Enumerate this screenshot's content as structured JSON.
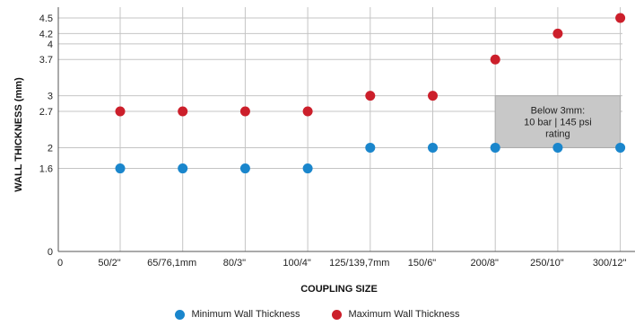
{
  "chart_data": {
    "type": "scatter",
    "title": "",
    "xlabel": "COUPLING SIZE",
    "ylabel": "WALL THICKNESS (mm)",
    "x_origin_label": "0",
    "categories": [
      "50/2\"",
      "65/76,1mm",
      "80/3\"",
      "100/4\"",
      "125/139,7mm",
      "150/6\"",
      "200/8\"",
      "250/10\"",
      "300/12\""
    ],
    "y_ticks": [
      0,
      1.6,
      2,
      2.7,
      3,
      3.7,
      4,
      4.2,
      4.5
    ],
    "y_tick_labels": [
      "0",
      "1.6",
      "2",
      "2.7",
      "3",
      "3.7",
      "4",
      "4.2",
      "4.5"
    ],
    "ylim": [
      0,
      4.5
    ],
    "grid": true,
    "legend_position": "bottom-center",
    "series": [
      {
        "name": "Minimum Wall Thickness",
        "color": "#1a86cc",
        "values": [
          1.6,
          1.6,
          1.6,
          1.6,
          2,
          2,
          2,
          2,
          2
        ]
      },
      {
        "name": "Maximum Wall Thickness",
        "color": "#cc1f2b",
        "values": [
          2.7,
          2.7,
          2.7,
          2.7,
          3,
          3,
          3.7,
          4.2,
          4.5
        ]
      }
    ],
    "annotation": {
      "lines": [
        "Below 3mm:",
        "10 bar | 145 psi",
        "rating"
      ],
      "y_range": [
        2,
        3
      ],
      "x_from_category": 6,
      "x_to_category": 8,
      "fill": "#c8c8c8"
    }
  }
}
